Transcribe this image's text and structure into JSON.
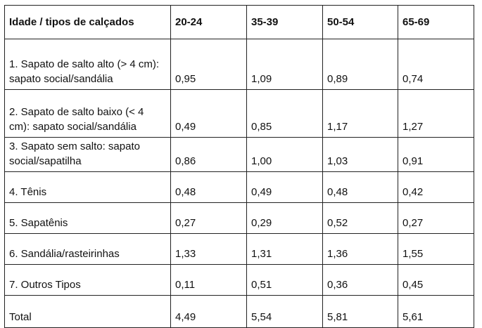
{
  "table": {
    "headers": [
      "Idade / tipos de calçados",
      "20-24",
      "35-39",
      "50-54",
      "65-69"
    ],
    "rows": [
      {
        "label": "1. Sapato de salto alto (> 4 cm): sapato social/sandália",
        "values": [
          "0,95",
          "1,09",
          "0,89",
          "0,74"
        ]
      },
      {
        "label": "2. Sapato de salto baixo (< 4 cm): sapato social/sandália",
        "values": [
          "0,49",
          "0,85",
          "1,17",
          "1,27"
        ]
      },
      {
        "label": "3. Sapato sem salto: sapato social/sapatilha",
        "values": [
          "0,86",
          "1,00",
          "1,03",
          "0,91"
        ]
      },
      {
        "label": "4. Tênis",
        "values": [
          "0,48",
          "0,49",
          "0,48",
          "0,42"
        ]
      },
      {
        "label": "5. Sapatênis",
        "values": [
          "0,27",
          "0,29",
          "0,52",
          "0,27"
        ]
      },
      {
        "label": "6. Sandália/rasteirinhas",
        "values": [
          "1,33",
          "1,31",
          "1,36",
          "1,55"
        ]
      },
      {
        "label": "7. Outros Tipos",
        "values": [
          "0,11",
          "0,51",
          "0,36",
          "0,45"
        ]
      },
      {
        "label": "Total",
        "values": [
          "4,49",
          "5,54",
          "5,81",
          "5,61"
        ]
      }
    ]
  }
}
